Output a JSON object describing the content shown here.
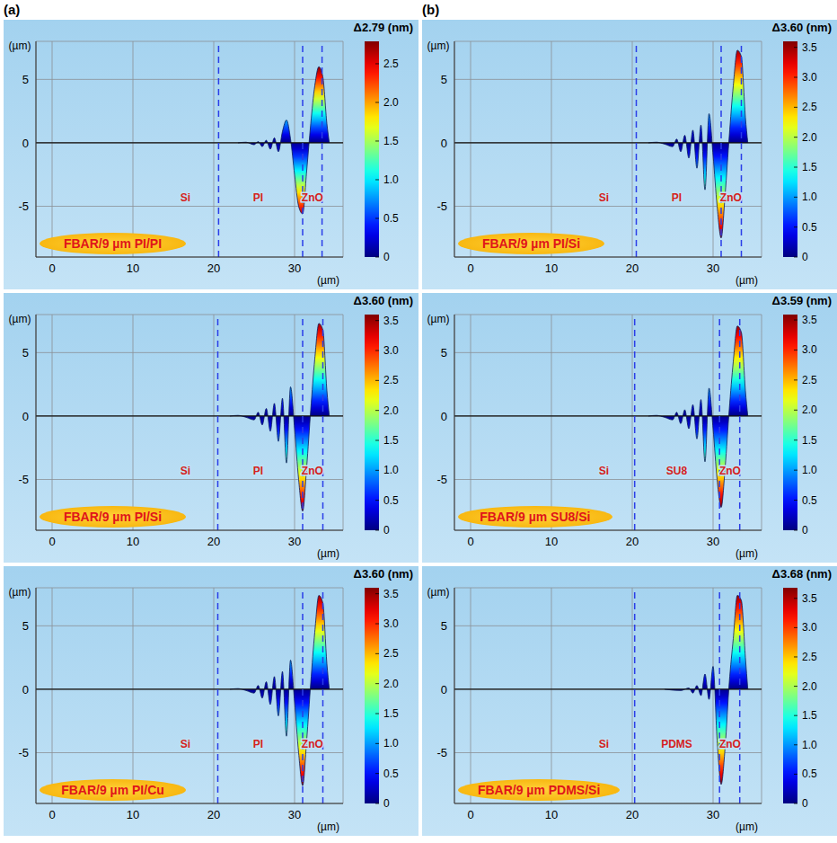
{
  "panel_labels": [
    "(a)",
    "(b)"
  ],
  "chart_data": [
    {
      "type": "area",
      "title": "FBAR/9 µm PI/PI",
      "x_label": "(µm)",
      "y_label": "(µm)",
      "color": "#0a1a5c",
      "grid": true,
      "x": [
        23,
        24,
        25,
        25.5,
        26,
        26.5,
        27,
        27.5,
        28,
        28.5,
        29,
        29.5,
        30,
        30.5,
        31,
        31.5,
        32,
        32.5,
        33,
        33.5,
        34,
        34.3
      ],
      "values": [
        0,
        0.05,
        -0.15,
        0.1,
        -0.3,
        0.2,
        -0.5,
        0.4,
        -0.7,
        0.9,
        1.8,
        0.3,
        -2.5,
        -5.0,
        -5.6,
        -2.2,
        1.5,
        4.5,
        6.0,
        5.2,
        1.5,
        0
      ],
      "xlim": [
        -2,
        36
      ],
      "ylim": [
        -9,
        8
      ],
      "xticks": [
        0,
        10,
        20,
        30
      ],
      "yticks": [
        -5,
        0,
        5
      ],
      "baseline": 0,
      "boundaries": [
        20.6,
        31,
        33.4
      ],
      "region_labels": [
        {
          "text": "Si",
          "x": 16.5,
          "y": -4.3
        },
        {
          "text": "PI",
          "x": 25.5,
          "y": -4.3
        },
        {
          "text": "ZnO",
          "x": 32.2,
          "y": -4.3
        }
      ],
      "colorbar": {
        "label": "Δ2.79 (nm)",
        "range": [
          0,
          2.79
        ],
        "ticks": [
          0,
          0.5,
          {
            "value": 1,
            "label": "1.0"
          },
          1.5,
          {
            "value": 2,
            "label": "2.0"
          },
          2.5
        ]
      }
    },
    {
      "type": "area",
      "title": "FBAR/9 µm PI/Si",
      "x_label": "(µm)",
      "y_label": "(µm)",
      "color": "#0a1a5c",
      "grid": true,
      "x": [
        22,
        23,
        24,
        25,
        25.5,
        26,
        26.5,
        27,
        27.5,
        28,
        28.5,
        29,
        29.5,
        30,
        30.5,
        31,
        31.5,
        32,
        32.5,
        33,
        33.5,
        34,
        34.3
      ],
      "values": [
        0,
        0.05,
        -0.1,
        -0.3,
        0.3,
        -0.7,
        0.6,
        -1.2,
        1.0,
        -2.0,
        1.4,
        -3.7,
        2.3,
        -1.0,
        -5.0,
        -7.5,
        -4.0,
        0.5,
        4.5,
        7.3,
        6.8,
        2.0,
        0
      ],
      "xlim": [
        -2,
        36
      ],
      "ylim": [
        -9,
        8
      ],
      "xticks": [
        0,
        10,
        20,
        30
      ],
      "yticks": [
        -5,
        0,
        5
      ],
      "baseline": 0,
      "boundaries": [
        20.5,
        31,
        33.5
      ],
      "region_labels": [
        {
          "text": "Si",
          "x": 16.5,
          "y": -4.3
        },
        {
          "text": "PI",
          "x": 25.5,
          "y": -4.3
        },
        {
          "text": "ZnO",
          "x": 32.2,
          "y": -4.3
        }
      ],
      "colorbar": {
        "label": "Δ3.60 (nm)",
        "range": [
          0,
          3.6
        ],
        "ticks": [
          0,
          0.5,
          {
            "value": 1,
            "label": "1.0"
          },
          1.5,
          {
            "value": 2,
            "label": "2.0"
          },
          2.5,
          {
            "value": 3,
            "label": "3.0"
          },
          3.5
        ]
      }
    },
    {
      "type": "area",
      "title": "FBAR/9 µm PI/Cu",
      "x_label": "(µm)",
      "y_label": "(µm)",
      "color": "#0a1a5c",
      "grid": true,
      "x": [
        22,
        23,
        24,
        25,
        25.5,
        26,
        26.5,
        27,
        27.5,
        28,
        28.5,
        29,
        29.5,
        30,
        30.5,
        31,
        31.5,
        32,
        32.5,
        33,
        33.5,
        34,
        34.3
      ],
      "values": [
        0,
        0.05,
        -0.1,
        -0.3,
        0.3,
        -0.7,
        0.6,
        -1.2,
        1.0,
        -2.1,
        1.4,
        -3.7,
        2.3,
        -1.0,
        -5.0,
        -7.6,
        -4.0,
        0.5,
        4.5,
        7.4,
        6.8,
        2.0,
        0
      ],
      "xlim": [
        -2,
        36
      ],
      "ylim": [
        -9,
        8
      ],
      "xticks": [
        0,
        10,
        20,
        30
      ],
      "yticks": [
        -5,
        0,
        5
      ],
      "baseline": 0,
      "boundaries": [
        20.5,
        31,
        33.5
      ],
      "region_labels": [
        {
          "text": "Si",
          "x": 16.5,
          "y": -4.3
        },
        {
          "text": "PI",
          "x": 25.5,
          "y": -4.3
        },
        {
          "text": "ZnO",
          "x": 32.2,
          "y": -4.3
        }
      ],
      "colorbar": {
        "label": "Δ3.60 (nm)",
        "range": [
          0,
          3.6
        ],
        "ticks": [
          0,
          0.5,
          {
            "value": 1,
            "label": "1.0"
          },
          1.5,
          {
            "value": 2,
            "label": "2.0"
          },
          2.5,
          {
            "value": 3,
            "label": "3.0"
          },
          3.5
        ]
      }
    },
    {
      "type": "area",
      "title": "FBAR/9 µm PI/Si",
      "x_label": "(µm)",
      "y_label": "(µm)",
      "color": "#0a1a5c",
      "grid": true,
      "x": [
        22,
        23,
        24,
        25,
        25.5,
        26,
        26.5,
        27,
        27.5,
        28,
        28.5,
        29,
        29.5,
        30,
        30.5,
        31,
        31.5,
        32,
        32.5,
        33,
        33.5,
        34,
        34.3
      ],
      "values": [
        0,
        0.05,
        -0.1,
        -0.3,
        0.3,
        -0.7,
        0.6,
        -1.2,
        1.0,
        -2.0,
        1.4,
        -3.7,
        2.3,
        -1.0,
        -5.0,
        -7.5,
        -4.0,
        0.5,
        4.5,
        7.3,
        6.8,
        2.0,
        0
      ],
      "xlim": [
        -2,
        36
      ],
      "ylim": [
        -9,
        8
      ],
      "xticks": [
        0,
        10,
        20,
        30
      ],
      "yticks": [
        -5,
        0,
        5
      ],
      "baseline": 0,
      "boundaries": [
        20.5,
        31,
        33.5
      ],
      "region_labels": [
        {
          "text": "Si",
          "x": 16.5,
          "y": -4.3
        },
        {
          "text": "PI",
          "x": 25.5,
          "y": -4.3
        },
        {
          "text": "ZnO",
          "x": 32.2,
          "y": -4.3
        }
      ],
      "colorbar": {
        "label": "Δ3.60 (nm)",
        "range": [
          0,
          3.6
        ],
        "ticks": [
          0,
          0.5,
          {
            "value": 1,
            "label": "1.0"
          },
          1.5,
          {
            "value": 2,
            "label": "2.0"
          },
          2.5,
          {
            "value": 3,
            "label": "3.0"
          },
          3.5
        ]
      }
    },
    {
      "type": "area",
      "title": "FBAR/9 µm SU8/Si",
      "x_label": "(µm)",
      "y_label": "(µm)",
      "color": "#0a1a5c",
      "grid": true,
      "x": [
        22,
        23,
        24,
        25,
        25.5,
        26,
        26.5,
        27,
        27.5,
        28,
        28.5,
        29,
        29.5,
        30,
        30.5,
        31,
        31.5,
        32,
        32.5,
        33,
        33.5,
        34,
        34.3
      ],
      "values": [
        0,
        0.05,
        -0.1,
        -0.3,
        0.3,
        -0.6,
        0.5,
        -1.0,
        0.9,
        -1.8,
        1.3,
        -3.6,
        2.2,
        -1.0,
        -5.0,
        -7.2,
        -4.0,
        0.5,
        4.3,
        7.1,
        6.6,
        2.0,
        0
      ],
      "xlim": [
        -2,
        36
      ],
      "ylim": [
        -9,
        8
      ],
      "xticks": [
        0,
        10,
        20,
        30
      ],
      "yticks": [
        -5,
        0,
        5
      ],
      "baseline": 0,
      "boundaries": [
        20.3,
        30.8,
        33.3
      ],
      "region_labels": [
        {
          "text": "Si",
          "x": 16.5,
          "y": -4.3
        },
        {
          "text": "SU8",
          "x": 25.5,
          "y": -4.3
        },
        {
          "text": "ZnO",
          "x": 32.1,
          "y": -4.3
        }
      ],
      "colorbar": {
        "label": "Δ3.59 (nm)",
        "range": [
          0,
          3.59
        ],
        "ticks": [
          0,
          0.5,
          {
            "value": 1,
            "label": "1.0"
          },
          1.5,
          {
            "value": 2,
            "label": "2.0"
          },
          2.5,
          {
            "value": 3,
            "label": "3.0"
          },
          3.5
        ]
      }
    },
    {
      "type": "area",
      "title": "FBAR/9 µm PDMS/Si",
      "x_label": "(µm)",
      "y_label": "(µm)",
      "color": "#0a1a5c",
      "grid": true,
      "x": [
        24,
        26,
        27,
        27.5,
        28,
        28.5,
        29,
        29.5,
        30,
        30.5,
        31,
        31.5,
        32,
        32.5,
        33,
        33.5,
        34,
        34.3
      ],
      "values": [
        0,
        -0.1,
        0.1,
        -0.3,
        0.3,
        -0.5,
        1.2,
        -0.8,
        1.8,
        -4.0,
        -7.5,
        -4.5,
        0.5,
        4.0,
        7.4,
        7.0,
        2.5,
        0
      ],
      "xlim": [
        -2,
        36
      ],
      "ylim": [
        -9,
        8
      ],
      "xticks": [
        0,
        10,
        20,
        30
      ],
      "yticks": [
        -5,
        0,
        5
      ],
      "baseline": 0,
      "boundaries": [
        20.3,
        30.8,
        33.3
      ],
      "region_labels": [
        {
          "text": "Si",
          "x": 16.5,
          "y": -4.3
        },
        {
          "text": "PDMS",
          "x": 25.5,
          "y": -4.3
        },
        {
          "text": "ZnO",
          "x": 32.1,
          "y": -4.3
        }
      ],
      "colorbar": {
        "label": "Δ3.68 (nm)",
        "range": [
          0,
          3.68
        ],
        "ticks": [
          0,
          0.5,
          {
            "value": 1,
            "label": "1.0"
          },
          1.5,
          {
            "value": 2,
            "label": "2.0"
          },
          2.5,
          {
            "value": 3,
            "label": "3.0"
          },
          3.5
        ]
      }
    }
  ]
}
